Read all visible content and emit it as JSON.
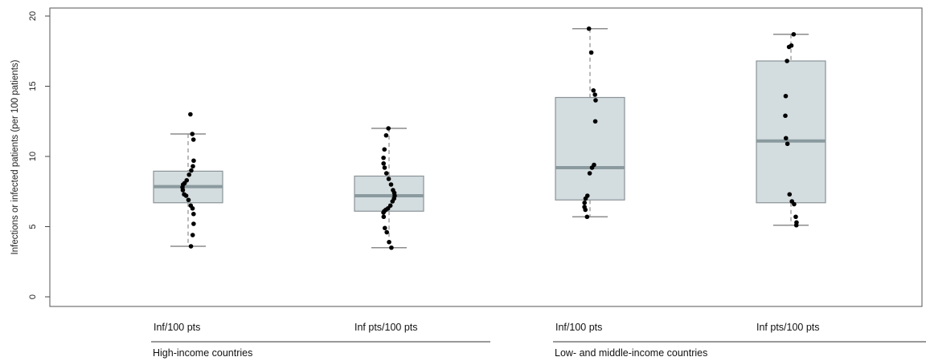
{
  "chart_data": {
    "type": "box",
    "ylabel": "Infections or infected patients (per 100 patients)",
    "ylim": [
      0,
      20
    ],
    "yticks": [
      0,
      5,
      10,
      15,
      20
    ],
    "grid": false,
    "colors": {
      "box_fill": "#d3dcdf",
      "box_stroke": "#8a9396",
      "median": "#8a9a9e",
      "whisker": "#8c8c8c",
      "point": "#000000",
      "axis": "#444444"
    },
    "boxes": [
      {
        "label": "Inf/100 pts",
        "group": "High-income countries",
        "whisker_low": 3.6,
        "q1": 6.7,
        "median": 7.85,
        "q3": 8.95,
        "whisker_high": 11.6,
        "points": [
          13.0,
          11.6,
          11.2,
          9.7,
          9.3,
          9.0,
          8.7,
          8.3,
          8.1,
          8.0,
          7.8,
          7.6,
          7.3,
          7.2,
          6.9,
          6.5,
          6.3,
          5.9,
          5.2,
          4.4,
          3.6
        ]
      },
      {
        "label": "Inf pts/100 pts",
        "group": "High-income countries",
        "whisker_low": 3.5,
        "q1": 6.1,
        "median": 7.2,
        "q3": 8.6,
        "whisker_high": 12.0,
        "points": [
          12.0,
          11.5,
          10.5,
          9.9,
          9.5,
          9.2,
          8.8,
          8.4,
          8.0,
          7.6,
          7.4,
          7.2,
          7.0,
          6.8,
          6.5,
          6.3,
          6.2,
          6.1,
          6.0,
          5.7,
          4.9,
          4.6,
          3.9,
          3.5
        ]
      },
      {
        "label": "Inf/100 pts",
        "group": "Low- and middle-income countries",
        "whisker_low": 5.7,
        "q1": 6.9,
        "median": 9.2,
        "q3": 14.2,
        "whisker_high": 19.1,
        "points": [
          19.1,
          17.4,
          14.7,
          14.4,
          14.0,
          12.5,
          9.4,
          9.2,
          8.8,
          7.2,
          7.0,
          6.7,
          6.4,
          6.2,
          5.7
        ]
      },
      {
        "label": "Inf pts/100 pts",
        "group": "Low- and middle-income countries",
        "whisker_low": 5.1,
        "q1": 6.7,
        "median": 11.1,
        "q3": 16.8,
        "whisker_high": 18.7,
        "points": [
          18.7,
          17.9,
          17.8,
          16.8,
          14.3,
          12.9,
          11.3,
          10.9,
          7.3,
          6.8,
          6.6,
          5.7,
          5.3,
          5.1
        ]
      }
    ],
    "groups": [
      "High-income countries",
      "Low- and middle-income countries"
    ]
  }
}
